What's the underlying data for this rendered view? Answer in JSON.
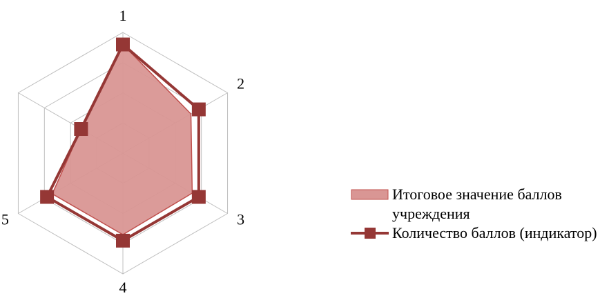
{
  "chart_data": {
    "type": "radar",
    "categories": [
      "1",
      "2",
      "3",
      "4",
      "5",
      null
    ],
    "series": [
      {
        "name": "Итоговое значение баллов учреждения",
        "color": "#d99694",
        "kind": "area",
        "values": [
          3.6,
          2.6,
          2.65,
          2.7,
          2.7,
          1.6
        ]
      },
      {
        "name": "Количество баллов (индикатор)",
        "color": "#953735",
        "kind": "line",
        "values": [
          3.6,
          2.9,
          2.9,
          2.9,
          2.9,
          1.6
        ]
      }
    ],
    "ylim": [
      0,
      4
    ],
    "yticks": [
      0,
      1,
      2,
      3,
      4
    ],
    "grid": true
  }
}
